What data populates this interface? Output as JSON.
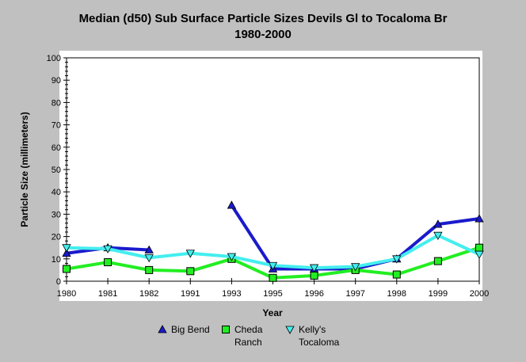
{
  "chart_data": {
    "type": "line",
    "title": "Median (d50) Sub Surface Particle Sizes Devils Gl to Tocaloma Br",
    "subtitle": "1980-2000",
    "xlabel": "Year",
    "ylabel": "Particle Size (millimeters)",
    "ylim": [
      0,
      100
    ],
    "yticks": [
      0,
      10,
      20,
      30,
      40,
      50,
      60,
      70,
      80,
      90,
      100
    ],
    "categories": [
      "1980",
      "1981",
      "1982",
      "1991",
      "1993",
      "1995",
      "1996",
      "1997",
      "1998",
      "1999",
      "2000"
    ],
    "grid": false,
    "series": [
      {
        "name": "Big Bend",
        "name_lines": [
          "Big Bend"
        ],
        "marker": "triangle-up",
        "line_color": "#1a1acc",
        "marker_color": "#1a1acc",
        "values": [
          12.5,
          15,
          14,
          null,
          34,
          5.5,
          5.5,
          5.5,
          10,
          25.5,
          28
        ]
      },
      {
        "name": "Cheda Ranch",
        "name_lines": [
          "Cheda",
          "Ranch"
        ],
        "marker": "square",
        "line_color": "#22ee22",
        "marker_color": "#22ee22",
        "values": [
          5.5,
          8.5,
          5,
          4.5,
          10,
          1.5,
          2.5,
          5,
          3,
          9,
          15
        ]
      },
      {
        "name": "Kelly's Tocaloma",
        "name_lines": [
          "Kelly's",
          "Tocaloma"
        ],
        "marker": "triangle-down",
        "line_color": "#44eeee",
        "marker_color": "#44eeee",
        "values": [
          15,
          14.5,
          10.5,
          12.5,
          11,
          7,
          6,
          6.5,
          10,
          20.5,
          12
        ]
      }
    ],
    "legend_position": "bottom"
  }
}
